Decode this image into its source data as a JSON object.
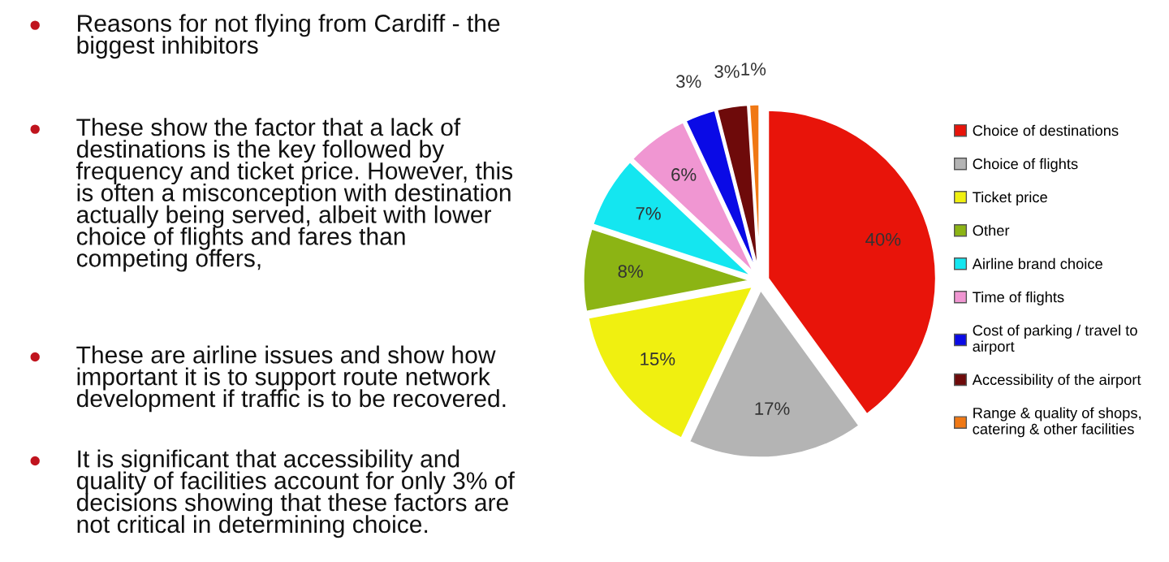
{
  "chart_data": {
    "type": "pie",
    "categories": [
      "Choice of destinations",
      "Choice of flights",
      "Ticket price",
      "Other",
      "Airline brand choice",
      "Time of flights",
      "Cost of parking / travel to\nairport",
      "Accessibility of the airport",
      "Range & quality of shops,\ncatering & other facilities"
    ],
    "values": [
      40,
      17,
      15,
      8,
      7,
      6,
      3,
      3,
      1
    ],
    "value_labels": [
      "40%",
      "17%",
      "15%",
      "8%",
      "7%",
      "6%",
      "3%",
      "3%",
      "1%"
    ],
    "colors": [
      "#e8140a",
      "#b4b4b4",
      "#f0f010",
      "#8cb414",
      "#14e6f0",
      "#f096d2",
      "#0a0ae6",
      "#6e0a0a",
      "#f07814"
    ],
    "legend": "right",
    "annotations": [
      "Reasons for not flying from Cardiff - the\nbiggest inhibitors",
      "These show the factor that a lack of\ndestinations is the key followed by\nfrequency and ticket price. However, this\nis often a misconception with destination\nactually being served, albeit with lower\nchoice of flights and fares than\ncompeting offers,",
      "These are airline issues and show how\nimportant it is to support route network\ndevelopment if traffic is to be recovered.",
      "It is significant that accessibility and\nquality of facilities account for only 3% of\ndecisions showing that these factors are\nnot critical in determining choice."
    ]
  }
}
